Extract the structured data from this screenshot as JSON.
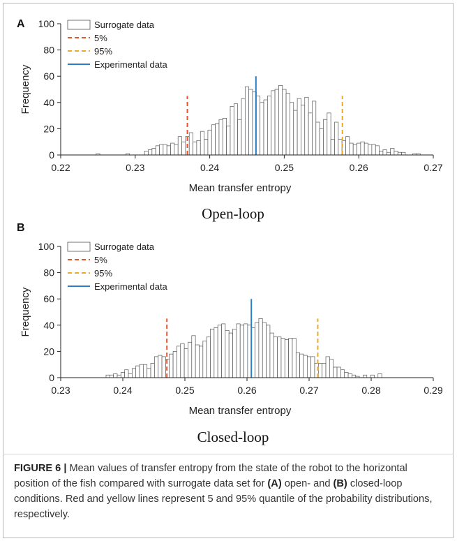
{
  "chart_data": [
    {
      "type": "bar",
      "panel": "A",
      "subtitle": "Open-loop",
      "xlabel": "Mean transfer entropy",
      "ylabel": "Frequency",
      "xlim": [
        0.22,
        0.27
      ],
      "ylim": [
        0,
        100
      ],
      "xticks": [
        "0.22",
        "0.23",
        "0.24",
        "0.25",
        "0.26",
        "0.27"
      ],
      "yticks": [
        "0",
        "20",
        "40",
        "60",
        "80",
        "100"
      ],
      "bin_width": 0.0005,
      "x": [
        0.225,
        0.229,
        0.2315,
        0.232,
        0.2325,
        0.233,
        0.2335,
        0.234,
        0.2345,
        0.235,
        0.2355,
        0.236,
        0.2365,
        0.237,
        0.2375,
        0.238,
        0.2385,
        0.239,
        0.2395,
        0.24,
        0.2405,
        0.241,
        0.2415,
        0.242,
        0.2425,
        0.243,
        0.2435,
        0.244,
        0.2445,
        0.245,
        0.2455,
        0.246,
        0.2465,
        0.247,
        0.2475,
        0.248,
        0.2485,
        0.249,
        0.2495,
        0.25,
        0.2505,
        0.251,
        0.2515,
        0.252,
        0.2525,
        0.253,
        0.2535,
        0.254,
        0.2545,
        0.255,
        0.2555,
        0.256,
        0.2565,
        0.257,
        0.2575,
        0.258,
        0.2585,
        0.259,
        0.2595,
        0.26,
        0.2605,
        0.261,
        0.2615,
        0.262,
        0.2625,
        0.263,
        0.2635,
        0.264,
        0.2645,
        0.265,
        0.2655,
        0.266,
        0.2675,
        0.268
      ],
      "values": [
        1,
        1,
        3,
        4,
        5,
        7,
        8,
        8,
        7,
        9,
        8,
        14,
        10,
        14,
        17,
        10,
        11,
        18,
        12,
        19,
        23,
        24,
        27,
        28,
        22,
        37,
        39,
        27,
        43,
        52,
        50,
        48,
        45,
        40,
        42,
        45,
        49,
        50,
        53,
        50,
        47,
        40,
        34,
        43,
        38,
        44,
        32,
        41,
        25,
        20,
        27,
        32,
        12,
        25,
        12,
        11,
        14,
        9,
        8,
        9,
        10,
        9,
        8,
        8,
        7,
        3,
        4,
        2,
        5,
        3,
        2,
        2,
        1,
        1
      ],
      "legend": [
        "Surrogate data",
        "5%",
        "95%",
        "Experimental data"
      ],
      "lines": [
        {
          "name": "5%",
          "x": 0.237,
          "height": 45,
          "color": "#e2552d",
          "style": "dashed"
        },
        {
          "name": "95%",
          "x": 0.2578,
          "height": 45,
          "color": "#eaaa2a",
          "style": "dashed"
        },
        {
          "name": "Experimental data",
          "x": 0.2462,
          "height": 60,
          "color": "#2a7fc4",
          "style": "solid"
        }
      ]
    },
    {
      "type": "bar",
      "panel": "B",
      "subtitle": "Closed-loop",
      "xlabel": "Mean transfer entropy",
      "ylabel": "Frequency",
      "xlim": [
        0.23,
        0.29
      ],
      "ylim": [
        0,
        100
      ],
      "xticks": [
        "0.23",
        "0.24",
        "0.25",
        "0.26",
        "0.27",
        "0.28",
        "0.29"
      ],
      "yticks": [
        "0",
        "20",
        "40",
        "60",
        "80",
        "100"
      ],
      "bin_width": 0.0006,
      "x": [
        0.2376,
        0.2382,
        0.2388,
        0.2394,
        0.24,
        0.2406,
        0.2412,
        0.2418,
        0.2424,
        0.243,
        0.2436,
        0.2442,
        0.2448,
        0.2454,
        0.246,
        0.2466,
        0.2472,
        0.2478,
        0.2484,
        0.249,
        0.2496,
        0.2502,
        0.2508,
        0.2514,
        0.252,
        0.2526,
        0.2532,
        0.2538,
        0.2544,
        0.255,
        0.2556,
        0.2562,
        0.2568,
        0.2574,
        0.258,
        0.2586,
        0.2592,
        0.2598,
        0.2604,
        0.261,
        0.2616,
        0.2622,
        0.2628,
        0.2634,
        0.264,
        0.2646,
        0.2652,
        0.2658,
        0.2664,
        0.267,
        0.2676,
        0.2682,
        0.2688,
        0.2694,
        0.27,
        0.2706,
        0.2712,
        0.2718,
        0.2724,
        0.273,
        0.2736,
        0.2742,
        0.2748,
        0.2754,
        0.276,
        0.2766,
        0.2772,
        0.2778,
        0.279,
        0.2802,
        0.2814
      ],
      "values": [
        2,
        2,
        3,
        2,
        4,
        6,
        3,
        7,
        9,
        10,
        10,
        7,
        11,
        16,
        17,
        16,
        14,
        18,
        20,
        24,
        26,
        22,
        27,
        32,
        25,
        24,
        28,
        31,
        37,
        38,
        40,
        41,
        36,
        34,
        37,
        41,
        40,
        41,
        40,
        38,
        42,
        45,
        42,
        40,
        34,
        31,
        31,
        30,
        29,
        30,
        30,
        19,
        18,
        17,
        16,
        16,
        11,
        11,
        11,
        16,
        14,
        8,
        8,
        6,
        4,
        3,
        2,
        1,
        2,
        2,
        3
      ],
      "legend": [
        "Surrogate data",
        "5%",
        "95%",
        "Experimental data"
      ],
      "lines": [
        {
          "name": "5%",
          "x": 0.2471,
          "height": 45,
          "color": "#e2552d",
          "style": "dashed"
        },
        {
          "name": "95%",
          "x": 0.2714,
          "height": 45,
          "color": "#eaaa2a",
          "style": "dashed"
        },
        {
          "name": "Experimental data",
          "x": 0.2607,
          "height": 60,
          "color": "#2a7fc4",
          "style": "solid"
        }
      ]
    }
  ],
  "caption": {
    "label": "FIGURE 6 |",
    "t1": " Mean values of transfer entropy from the state of the robot to the horizontal position of the fish compared with surrogate data set for ",
    "a": "(A)",
    "t2": " open- and ",
    "b": "(B)",
    "t3": " closed-loop conditions. Red and yellow lines represent 5 and 95% quantile of the probability distributions, respectively."
  },
  "colors": {
    "bar_fill": "#ffffff",
    "bar_edge": "#555555",
    "red_line": "#e2552d",
    "yellow_line": "#eaaa2a",
    "blue_line": "#2a7fc4"
  }
}
